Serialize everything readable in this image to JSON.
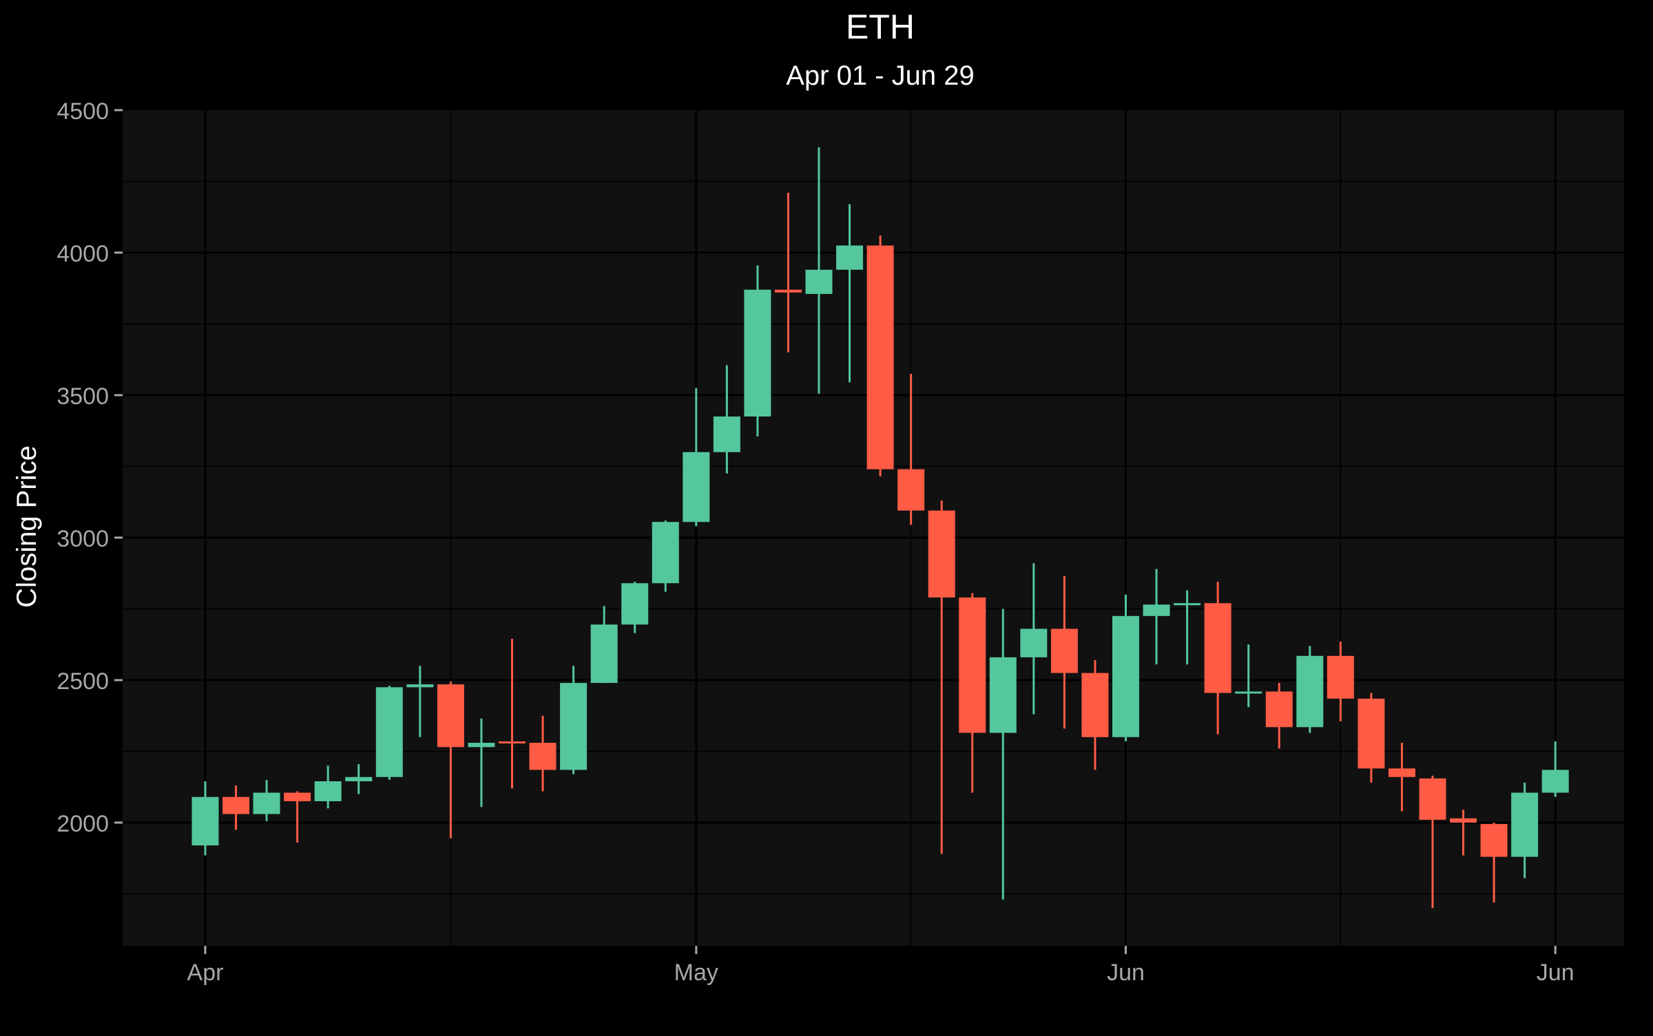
{
  "chart_data": {
    "type": "candlestick",
    "title": "ETH",
    "subtitle": "Apr 01 - Jun 29",
    "ylabel": "Closing Price",
    "xlabel": "",
    "ylim": [
      1560,
      4500
    ],
    "yticks": [
      2000,
      2500,
      3000,
      3500,
      4000,
      4500
    ],
    "ygrid_minor": [
      1750,
      2250,
      2750,
      3250,
      3750,
      4250
    ],
    "xlim": [
      -0.5,
      45.8
    ],
    "xticks": [
      {
        "x": 0,
        "label": "Apr"
      },
      {
        "x": 16,
        "label": "May"
      },
      {
        "x": 30,
        "label": "Jun"
      },
      {
        "x": 44,
        "label": "Jun"
      }
    ],
    "xgrid_minor": [
      8,
      23,
      37
    ],
    "grid": true,
    "legend": "none",
    "colors": {
      "up": "#54c79c",
      "down": "#ff5b45",
      "panel": "#111111",
      "background": "#000000",
      "grid": "#000000",
      "tick_text": "#a8a8a8",
      "title_text": "#ffffff"
    },
    "candles": [
      {
        "x": 0,
        "open": 1920,
        "high": 2145,
        "low": 1885,
        "close": 2090
      },
      {
        "x": 1,
        "open": 2090,
        "high": 2130,
        "low": 1975,
        "close": 2030
      },
      {
        "x": 2,
        "open": 2030,
        "high": 2150,
        "low": 2005,
        "close": 2105
      },
      {
        "x": 3,
        "open": 2105,
        "high": 2110,
        "low": 1930,
        "close": 2075
      },
      {
        "x": 4,
        "open": 2075,
        "high": 2200,
        "low": 2050,
        "close": 2145
      },
      {
        "x": 5,
        "open": 2145,
        "high": 2205,
        "low": 2100,
        "close": 2160
      },
      {
        "x": 6,
        "open": 2160,
        "high": 2480,
        "low": 2150,
        "close": 2475
      },
      {
        "x": 7,
        "open": 2475,
        "high": 2550,
        "low": 2300,
        "close": 2485
      },
      {
        "x": 8,
        "open": 2485,
        "high": 2495,
        "low": 1945,
        "close": 2265
      },
      {
        "x": 9,
        "open": 2265,
        "high": 2365,
        "low": 2055,
        "close": 2280
      },
      {
        "x": 10,
        "open": 2285,
        "high": 2645,
        "low": 2120,
        "close": 2280
      },
      {
        "x": 11,
        "open": 2280,
        "high": 2375,
        "low": 2110,
        "close": 2185
      },
      {
        "x": 12,
        "open": 2185,
        "high": 2550,
        "low": 2170,
        "close": 2490
      },
      {
        "x": 13,
        "open": 2490,
        "high": 2760,
        "low": 2490,
        "close": 2695
      },
      {
        "x": 14,
        "open": 2695,
        "high": 2845,
        "low": 2665,
        "close": 2840
      },
      {
        "x": 15,
        "open": 2840,
        "high": 3060,
        "low": 2810,
        "close": 3055
      },
      {
        "x": 16,
        "open": 3055,
        "high": 3525,
        "low": 3040,
        "close": 3300
      },
      {
        "x": 17,
        "open": 3300,
        "high": 3605,
        "low": 3225,
        "close": 3425
      },
      {
        "x": 18,
        "open": 3425,
        "high": 3955,
        "low": 3355,
        "close": 3870
      },
      {
        "x": 19,
        "open": 3870,
        "high": 4210,
        "low": 3650,
        "close": 3860
      },
      {
        "x": 20,
        "open": 3855,
        "high": 4370,
        "low": 3505,
        "close": 3940
      },
      {
        "x": 21,
        "open": 3940,
        "high": 4170,
        "low": 3545,
        "close": 4025
      },
      {
        "x": 22,
        "open": 4025,
        "high": 4060,
        "low": 3215,
        "close": 3240
      },
      {
        "x": 23,
        "open": 3240,
        "high": 3575,
        "low": 3045,
        "close": 3095
      },
      {
        "x": 24,
        "open": 3095,
        "high": 3130,
        "low": 1890,
        "close": 2790
      },
      {
        "x": 25,
        "open": 2790,
        "high": 2805,
        "low": 2105,
        "close": 2315
      },
      {
        "x": 26,
        "open": 2315,
        "high": 2750,
        "low": 1730,
        "close": 2580
      },
      {
        "x": 27,
        "open": 2580,
        "high": 2910,
        "low": 2380,
        "close": 2680
      },
      {
        "x": 28,
        "open": 2680,
        "high": 2865,
        "low": 2330,
        "close": 2525
      },
      {
        "x": 29,
        "open": 2525,
        "high": 2570,
        "low": 2185,
        "close": 2300
      },
      {
        "x": 30,
        "open": 2300,
        "high": 2800,
        "low": 2285,
        "close": 2725
      },
      {
        "x": 31,
        "open": 2725,
        "high": 2890,
        "low": 2555,
        "close": 2765
      },
      {
        "x": 32,
        "open": 2765,
        "high": 2815,
        "low": 2555,
        "close": 2770
      },
      {
        "x": 33,
        "open": 2770,
        "high": 2845,
        "low": 2310,
        "close": 2455
      },
      {
        "x": 34,
        "open": 2455,
        "high": 2625,
        "low": 2405,
        "close": 2460
      },
      {
        "x": 35,
        "open": 2460,
        "high": 2490,
        "low": 2260,
        "close": 2335
      },
      {
        "x": 36,
        "open": 2335,
        "high": 2620,
        "low": 2315,
        "close": 2585
      },
      {
        "x": 37,
        "open": 2585,
        "high": 2635,
        "low": 2355,
        "close": 2435
      },
      {
        "x": 38,
        "open": 2435,
        "high": 2455,
        "low": 2140,
        "close": 2190
      },
      {
        "x": 39,
        "open": 2190,
        "high": 2280,
        "low": 2040,
        "close": 2160
      },
      {
        "x": 40,
        "open": 2155,
        "high": 2165,
        "low": 1700,
        "close": 2010
      },
      {
        "x": 41,
        "open": 2015,
        "high": 2045,
        "low": 1885,
        "close": 2000
      },
      {
        "x": 42,
        "open": 1995,
        "high": 2000,
        "low": 1720,
        "close": 1880
      },
      {
        "x": 43,
        "open": 1880,
        "high": 2140,
        "low": 1805,
        "close": 2105
      },
      {
        "x": 44,
        "open": 2105,
        "high": 2285,
        "low": 2090,
        "close": 2185
      }
    ]
  }
}
